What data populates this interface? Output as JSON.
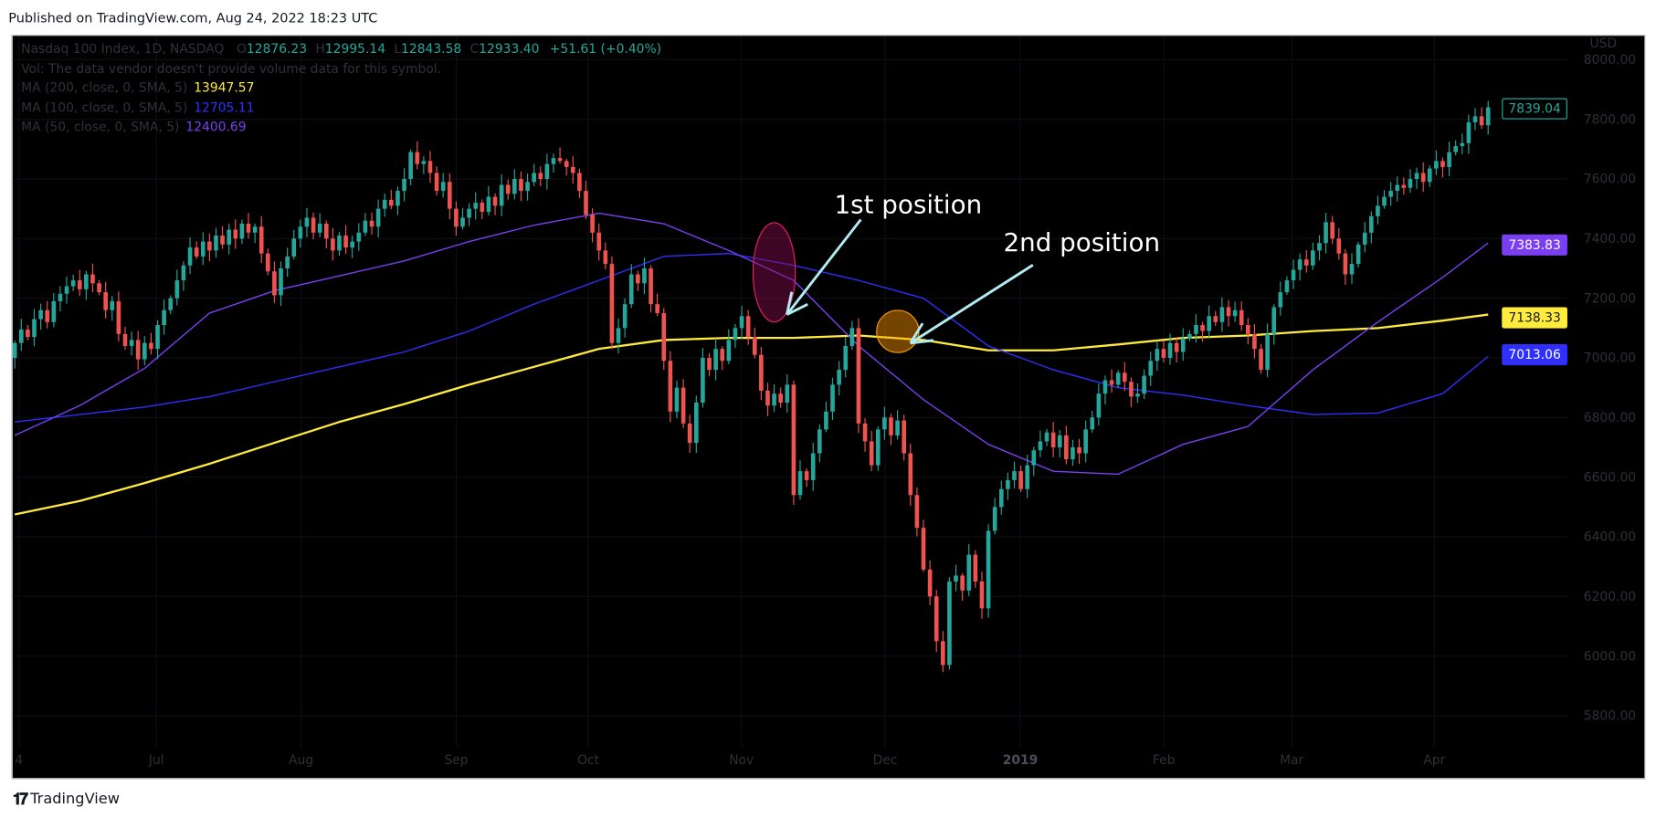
{
  "header": {
    "published": "Published on TradingView.com, Aug 24, 2022 18:23 UTC"
  },
  "legend": {
    "symbol": "Nasdaq 100 Index, 1D, NASDAQ",
    "ohlc": [
      {
        "key": "O",
        "value": "12876.23"
      },
      {
        "key": "H",
        "value": "12995.14"
      },
      {
        "key": "L",
        "value": "12843.58"
      },
      {
        "key": "C",
        "value": "12933.40"
      }
    ],
    "change": "+51.61 (+0.40%)",
    "vol": "Vol: The data vendor doesn't provide volume data for this symbol.",
    "ma": [
      {
        "label": "MA (200, close, 0, SMA, 5)",
        "value": "13947.57",
        "color": "#ffeb3b"
      },
      {
        "label": "MA (100, close, 0, SMA, 5)",
        "value": "12705.11",
        "color": "#2f2fff"
      },
      {
        "label": "MA (50, close, 0, SMA, 5)",
        "value": "12400.69",
        "color": "#7b3ff2"
      }
    ]
  },
  "footer": {
    "brand": "TradingView"
  },
  "chart_data": {
    "type": "candlestick",
    "currency": "USD",
    "ylim": [
      5750,
      8000
    ],
    "y_ticks": [
      "8000.00",
      "7800.00",
      "7600.00",
      "7400.00",
      "7200.00",
      "7000.00",
      "6800.00",
      "6600.00",
      "6400.00",
      "6200.00",
      "6000.00",
      "5800.00"
    ],
    "x_ticks": [
      "4",
      "Jul",
      "Aug",
      "Sep",
      "Oct",
      "Nov",
      "Dec",
      "2019",
      "Feb",
      "Mar",
      "Apr"
    ],
    "grid": true,
    "colors": {
      "up": "#26a69a",
      "down": "#ef5350",
      "ma200": "#ffeb3b",
      "ma100": "#2f2fff",
      "ma50": "#7b3ff2",
      "annotation": "#b2ebf2"
    },
    "closes": [
      7050,
      7095,
      7070,
      7130,
      7160,
      7120,
      7190,
      7215,
      7240,
      7260,
      7230,
      7280,
      7250,
      7220,
      7160,
      7190,
      7080,
      7040,
      7060,
      6995,
      7050,
      7030,
      7110,
      7160,
      7200,
      7260,
      7310,
      7370,
      7340,
      7390,
      7360,
      7410,
      7380,
      7430,
      7400,
      7450,
      7420,
      7440,
      7350,
      7290,
      7210,
      7300,
      7340,
      7400,
      7440,
      7470,
      7420,
      7450,
      7400,
      7360,
      7410,
      7370,
      7390,
      7420,
      7460,
      7440,
      7500,
      7530,
      7510,
      7560,
      7600,
      7690,
      7650,
      7660,
      7620,
      7560,
      7590,
      7500,
      7440,
      7470,
      7500,
      7520,
      7490,
      7540,
      7510,
      7580,
      7550,
      7600,
      7560,
      7590,
      7620,
      7600,
      7650,
      7670,
      7660,
      7640,
      7620,
      7560,
      7480,
      7420,
      7360,
      7315,
      7050,
      7100,
      7180,
      7280,
      7250,
      7300,
      7180,
      7150,
      6990,
      6820,
      6900,
      6780,
      6715,
      6850,
      7000,
      6960,
      7030,
      6990,
      7060,
      7100,
      7140,
      7070,
      7010,
      6890,
      6840,
      6880,
      6850,
      6910,
      6540,
      6620,
      6590,
      6680,
      6760,
      6820,
      6910,
      6960,
      7040,
      7100,
      6780,
      6720,
      6640,
      6760,
      6800,
      6740,
      6790,
      6680,
      6540,
      6430,
      6290,
      6200,
      6050,
      5970,
      6250,
      6270,
      6220,
      6340,
      6250,
      6160,
      6420,
      6500,
      6560,
      6590,
      6620,
      6560,
      6640,
      6690,
      6720,
      6750,
      6700,
      6740,
      6660,
      6700,
      6680,
      6760,
      6800,
      6880,
      6925,
      6910,
      6950,
      6920,
      6870,
      6880,
      6940,
      6990,
      7030,
      7000,
      7050,
      7020,
      7065,
      7080,
      7110,
      7090,
      7140,
      7120,
      7170,
      7140,
      7160,
      7110,
      7080,
      7030,
      6960,
      7080,
      7170,
      7220,
      7260,
      7295,
      7330,
      7310,
      7360,
      7385,
      7455,
      7400,
      7350,
      7280,
      7315,
      7380,
      7420,
      7475,
      7510,
      7540,
      7560,
      7580,
      7570,
      7600,
      7620,
      7590,
      7635,
      7660,
      7640,
      7690,
      7710,
      7720,
      7790,
      7810,
      7780,
      7840
    ],
    "moving_averages": [
      {
        "name": "MA 200",
        "color": "#ffeb3b",
        "values": [
          6475,
          6520,
          6580,
          6645,
          6715,
          6785,
          6845,
          6910,
          6970,
          7030,
          7060,
          7067,
          7067,
          7075,
          7060,
          7025,
          7025,
          7045,
          7067,
          7075,
          7090,
          7100,
          7125,
          7145
        ]
      },
      {
        "name": "MA 100",
        "color": "#2f2fff",
        "values": [
          6785,
          6810,
          6835,
          6870,
          6920,
          6970,
          7020,
          7090,
          7180,
          7260,
          7340,
          7350,
          7310,
          7260,
          7200,
          7040,
          6960,
          6900,
          6875,
          6840,
          6810,
          6815,
          6880,
          7005
        ]
      },
      {
        "name": "MA 50",
        "color": "#7b3ff2",
        "values": [
          6740,
          6840,
          6965,
          7150,
          7225,
          7275,
          7325,
          7390,
          7445,
          7485,
          7450,
          7360,
          7260,
          7040,
          6860,
          6710,
          6620,
          6610,
          6710,
          6770,
          6960,
          7120,
          7270,
          7385
        ]
      }
    ],
    "price_badges": [
      {
        "value": "7839.04",
        "price": 7839.04,
        "bg": "#000000",
        "fg": "#26a69a",
        "border": "#26a69a"
      },
      {
        "value": "7383.83",
        "price": 7383.83,
        "bg": "#7b3ff2",
        "fg": "#ffffff",
        "border": "#7b3ff2"
      },
      {
        "value": "7138.33",
        "price": 7138.33,
        "bg": "#ffeb3b",
        "fg": "#131722",
        "border": "#ffeb3b"
      },
      {
        "value": "7013.06",
        "price": 7013.06,
        "bg": "#2f2fff",
        "fg": "#ffffff",
        "border": "#2f2fff"
      }
    ],
    "annotations": [
      {
        "text": "1st position"
      },
      {
        "text": "2nd position"
      }
    ]
  }
}
